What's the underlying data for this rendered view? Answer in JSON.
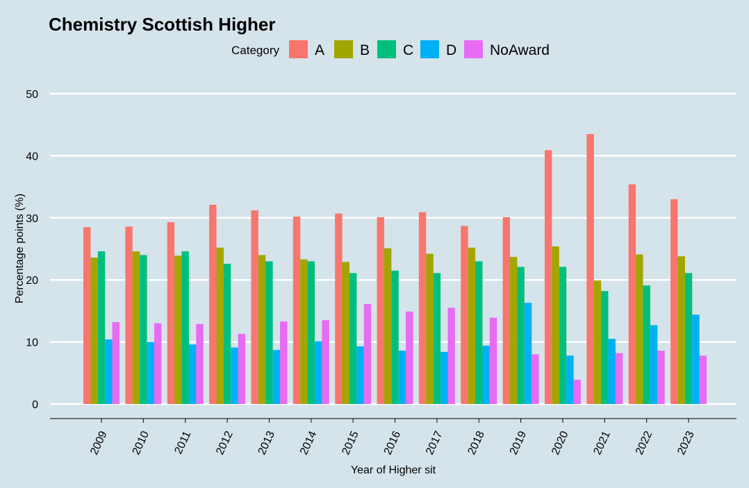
{
  "chart_data": {
    "type": "bar",
    "title": "Chemistry Scottish Higher",
    "xlabel": "Year of Higher sit",
    "ylabel": "Percentage points (%)",
    "ylim": [
      0,
      50
    ],
    "yticks": [
      0,
      10,
      20,
      30,
      40,
      50
    ],
    "grid": true,
    "legend": {
      "title": "Category",
      "position": "top"
    },
    "categories": [
      "2009",
      "2010",
      "2011",
      "2012",
      "2013",
      "2014",
      "2015",
      "2016",
      "2017",
      "2018",
      "2019",
      "2020",
      "2021",
      "2022",
      "2023"
    ],
    "series": [
      {
        "name": "A",
        "color": "#f8766d",
        "values": [
          28.5,
          28.6,
          29.3,
          32.1,
          31.2,
          30.2,
          30.7,
          30.1,
          30.9,
          28.7,
          30.1,
          40.9,
          43.5,
          35.4,
          33.0
        ]
      },
      {
        "name": "B",
        "color": "#a3a500",
        "values": [
          23.6,
          24.6,
          23.9,
          25.2,
          24.0,
          23.3,
          22.9,
          25.1,
          24.2,
          25.2,
          23.7,
          25.4,
          19.9,
          24.1,
          23.8
        ]
      },
      {
        "name": "C",
        "color": "#00bf7d",
        "values": [
          24.6,
          24.0,
          24.6,
          22.6,
          23.0,
          23.0,
          21.1,
          21.5,
          21.1,
          23.0,
          22.1,
          22.1,
          18.2,
          19.1,
          21.1
        ]
      },
      {
        "name": "D",
        "color": "#00b0f6",
        "values": [
          10.4,
          10.0,
          9.6,
          9.1,
          8.7,
          10.1,
          9.3,
          8.6,
          8.4,
          9.4,
          16.3,
          7.8,
          10.5,
          12.7,
          14.4
        ]
      },
      {
        "name": "NoAward",
        "color": "#e76bf3",
        "values": [
          13.2,
          13.0,
          12.9,
          11.3,
          13.3,
          13.5,
          16.1,
          14.9,
          15.5,
          13.9,
          8.0,
          3.9,
          8.2,
          8.6,
          7.8
        ]
      }
    ]
  }
}
